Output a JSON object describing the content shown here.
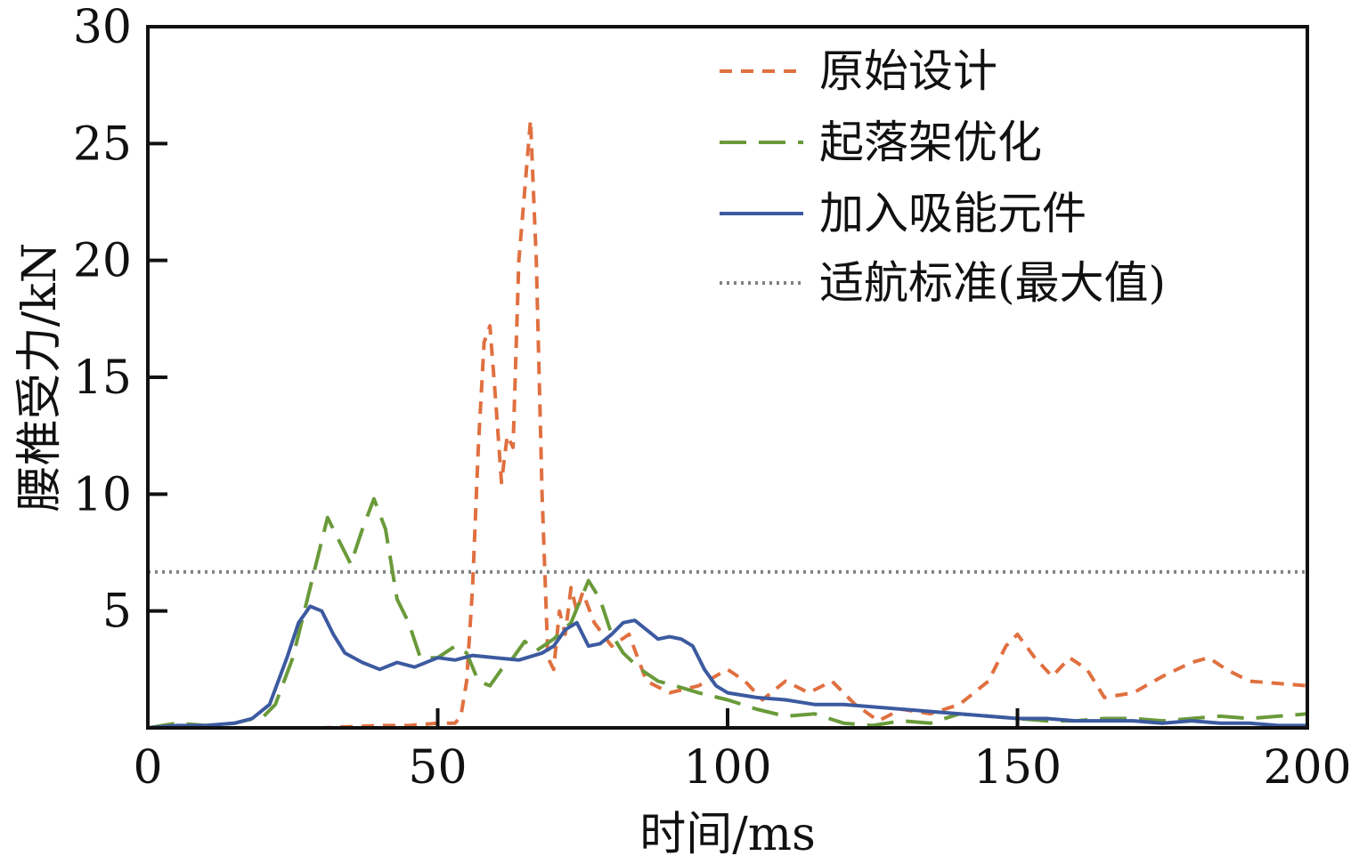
{
  "colors": {
    "original": "#E07040",
    "gear": "#6A9A3A",
    "absorber": "#3C5AA0",
    "limit": "#808080",
    "axis": "#111111"
  },
  "chart_data": {
    "type": "line",
    "xlabel": "时间/ms",
    "ylabel": "腰椎受力/kN",
    "xlim": [
      0,
      200
    ],
    "ylim": [
      0,
      30
    ],
    "xticks": [
      0,
      50,
      100,
      150,
      200
    ],
    "yticks": [
      5,
      10,
      15,
      20,
      25,
      30
    ],
    "y_tick_labels": [
      "5",
      "10",
      "15",
      "20",
      "25",
      "30"
    ],
    "x_tick_labels": [
      "0",
      "50",
      "100",
      "150",
      "200"
    ],
    "legend_position": "top-right",
    "grid": false,
    "series": [
      {
        "name": "原始设计",
        "style": "short-dash",
        "x": [
          0,
          10,
          20,
          30,
          40,
          45,
          50,
          53,
          54,
          55,
          56,
          57,
          58,
          59,
          60,
          61,
          62,
          63,
          64,
          65,
          66,
          67,
          68,
          69,
          70,
          71,
          72,
          73,
          74,
          75,
          77,
          80,
          83,
          86,
          90,
          95,
          100,
          103,
          106,
          110,
          114,
          118,
          122,
          126,
          130,
          135,
          140,
          145,
          148,
          150,
          153,
          156,
          159,
          162,
          165,
          170,
          175,
          180,
          183,
          186,
          190,
          195,
          200
        ],
        "y": [
          0,
          0,
          0,
          0,
          0.1,
          0.1,
          0.2,
          0.2,
          0.5,
          2,
          6,
          12,
          16.5,
          17.2,
          14,
          10.5,
          12.5,
          12,
          20,
          23,
          26,
          20,
          10,
          3,
          2.5,
          5,
          4,
          6,
          5,
          5.8,
          4.5,
          3.5,
          4,
          2,
          1.5,
          1.8,
          2.5,
          2,
          1.2,
          2,
          1.5,
          2,
          1,
          0.3,
          0.8,
          0.6,
          1,
          2,
          3.5,
          4,
          3,
          2.2,
          3,
          2.5,
          1.3,
          1.5,
          2.2,
          2.8,
          3,
          2.5,
          2,
          1.9,
          1.8
        ]
      },
      {
        "name": "起落架优化",
        "style": "long-dash",
        "x": [
          0,
          5,
          10,
          15,
          20,
          22,
          25,
          27,
          29,
          31,
          33,
          35,
          37,
          39,
          41,
          43,
          45,
          47,
          50,
          53,
          55,
          57,
          59,
          61,
          63,
          65,
          67,
          70,
          73,
          76,
          78,
          80,
          82,
          85,
          88,
          91,
          95,
          100,
          105,
          110,
          115,
          120,
          125,
          130,
          135,
          140,
          145,
          150,
          155,
          160,
          165,
          170,
          175,
          180,
          185,
          190,
          195,
          200
        ],
        "y": [
          0,
          0.2,
          0.1,
          0.2,
          0.5,
          1,
          3,
          5,
          7,
          9,
          8,
          7,
          8.5,
          9.8,
          8.5,
          5.5,
          4.5,
          3,
          3,
          3.5,
          3.2,
          2,
          1.8,
          2.5,
          3,
          3.7,
          3.3,
          3.8,
          4.5,
          6.3,
          5.5,
          4,
          3.2,
          2.5,
          2,
          1.8,
          1.5,
          1.2,
          0.8,
          0.5,
          0.6,
          0.2,
          0.1,
          0.3,
          0.2,
          0.6,
          0.5,
          0.4,
          0.3,
          0.3,
          0.4,
          0.4,
          0.3,
          0.4,
          0.5,
          0.4,
          0.5,
          0.6
        ]
      },
      {
        "name": "加入吸能元件",
        "style": "solid",
        "x": [
          0,
          5,
          10,
          15,
          18,
          21,
          24,
          26,
          28,
          30,
          32,
          34,
          37,
          40,
          43,
          46,
          50,
          53,
          56,
          60,
          64,
          68,
          70,
          72,
          74,
          76,
          78,
          80,
          82,
          84,
          86,
          88,
          90,
          92,
          94,
          96,
          98,
          100,
          105,
          110,
          115,
          120,
          125,
          130,
          135,
          140,
          145,
          150,
          155,
          160,
          165,
          170,
          175,
          180,
          185,
          190,
          195,
          200
        ],
        "y": [
          0,
          0.1,
          0.1,
          0.2,
          0.4,
          1,
          3,
          4.5,
          5.2,
          5,
          4,
          3.2,
          2.8,
          2.5,
          2.8,
          2.6,
          3,
          2.9,
          3.1,
          3,
          2.9,
          3.2,
          3.5,
          4.2,
          4.5,
          3.5,
          3.6,
          4,
          4.5,
          4.6,
          4.2,
          3.8,
          3.9,
          3.8,
          3.5,
          2.5,
          1.8,
          1.5,
          1.3,
          1.2,
          1,
          1,
          0.9,
          0.8,
          0.7,
          0.6,
          0.5,
          0.4,
          0.4,
          0.3,
          0.3,
          0.3,
          0.2,
          0.3,
          0.2,
          0.2,
          0.1,
          0.1
        ]
      },
      {
        "name": "适航标准(最大值)",
        "style": "dotted",
        "x": [
          0,
          200
        ],
        "y": [
          6.67,
          6.67
        ]
      }
    ]
  }
}
